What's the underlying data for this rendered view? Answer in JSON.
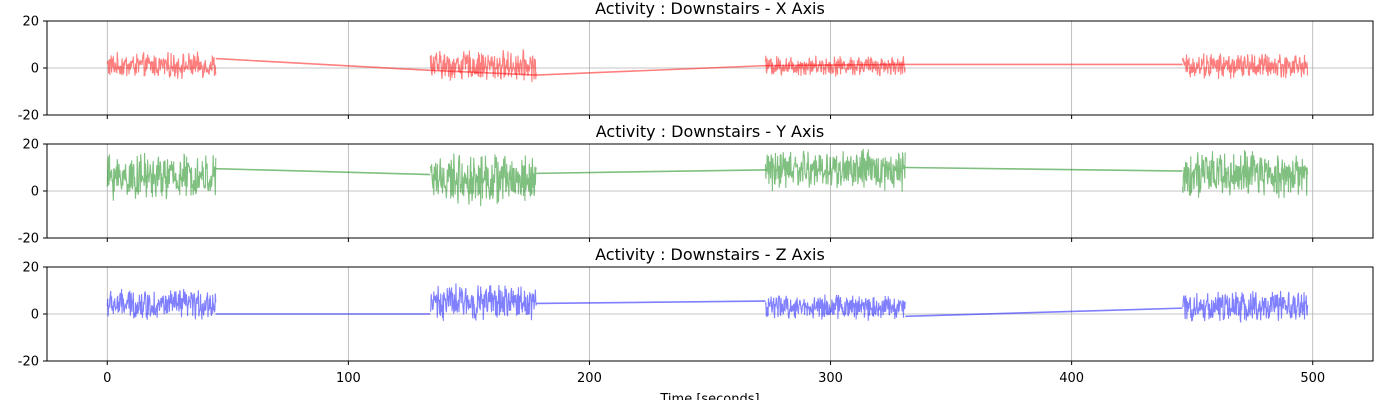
{
  "chart_data": [
    {
      "type": "line",
      "title": "Activity : Downstairs - X Axis",
      "xlabel": "",
      "ylabel": "",
      "xlim": [
        -25,
        525
      ],
      "ylim": [
        -20,
        20
      ],
      "yticks": [
        -20,
        0,
        20
      ],
      "xticks": [
        0,
        100,
        200,
        300,
        400,
        500
      ],
      "grid": true,
      "color": "#ff0000",
      "alpha": 0.5,
      "series": [
        {
          "segments": [
            {
              "x_start": 0,
              "x_end": 45,
              "center": 1,
              "amplitude": 5
            },
            {
              "x_start": 134,
              "x_end": 178,
              "center": 1,
              "amplitude": 6
            },
            {
              "x_start": 273,
              "x_end": 331,
              "center": 1,
              "amplitude": 4
            },
            {
              "x_start": 446,
              "x_end": 498,
              "center": 1,
              "amplitude": 5
            }
          ],
          "connectors": [
            [
              [
                45,
                4
              ],
              [
                134,
                -1
              ]
            ],
            [
              [
                134,
                -1
              ],
              [
                178,
                -3
              ]
            ],
            [
              [
                178,
                -3
              ],
              [
                273,
                1
              ]
            ],
            [
              [
                273,
                1
              ],
              [
                331,
                1.5
              ]
            ],
            [
              [
                331,
                1.5
              ],
              [
                446,
                1.5
              ]
            ]
          ]
        }
      ]
    },
    {
      "type": "line",
      "title": "Activity : Downstairs - Y Axis",
      "xlabel": "",
      "ylabel": "",
      "xlim": [
        -25,
        525
      ],
      "ylim": [
        -20,
        20
      ],
      "yticks": [
        -20,
        0,
        20
      ],
      "xticks": [
        0,
        100,
        200,
        300,
        400,
        500
      ],
      "grid": true,
      "color": "#008000",
      "alpha": 0.5,
      "series": [
        {
          "segments": [
            {
              "x_start": 0,
              "x_end": 45,
              "center": 6,
              "amplitude": 9
            },
            {
              "x_start": 134,
              "x_end": 178,
              "center": 5,
              "amplitude": 10
            },
            {
              "x_start": 273,
              "x_end": 331,
              "center": 9,
              "amplitude": 8
            },
            {
              "x_start": 446,
              "x_end": 498,
              "center": 7,
              "amplitude": 9
            }
          ],
          "connectors": [
            [
              [
                45,
                9.5
              ],
              [
                134,
                7
              ]
            ],
            [
              [
                178,
                7.5
              ],
              [
                273,
                9
              ]
            ],
            [
              [
                331,
                10
              ],
              [
                446,
                8.5
              ]
            ]
          ]
        }
      ]
    },
    {
      "type": "line",
      "title": "Activity : Downstairs - Z Axis",
      "xlabel": "Time [seconds]",
      "ylabel": "",
      "xlim": [
        -25,
        525
      ],
      "ylim": [
        -20,
        20
      ],
      "yticks": [
        -20,
        0,
        20
      ],
      "xticks": [
        0,
        100,
        200,
        300,
        400,
        500
      ],
      "xticklabels": [
        "0",
        "100",
        "200",
        "300",
        "400",
        "500"
      ],
      "grid": true,
      "color": "#0000ff",
      "alpha": 0.5,
      "series": [
        {
          "segments": [
            {
              "x_start": 0,
              "x_end": 45,
              "center": 4,
              "amplitude": 6
            },
            {
              "x_start": 134,
              "x_end": 178,
              "center": 5,
              "amplitude": 7
            },
            {
              "x_start": 273,
              "x_end": 331,
              "center": 3,
              "amplitude": 5
            },
            {
              "x_start": 446,
              "x_end": 498,
              "center": 3,
              "amplitude": 6
            }
          ],
          "connectors": [
            [
              [
                45,
                0
              ],
              [
                134,
                0
              ]
            ],
            [
              [
                178,
                4.5
              ],
              [
                273,
                5.5
              ]
            ],
            [
              [
                331,
                -1
              ],
              [
                446,
                2.5
              ]
            ]
          ]
        }
      ]
    }
  ]
}
